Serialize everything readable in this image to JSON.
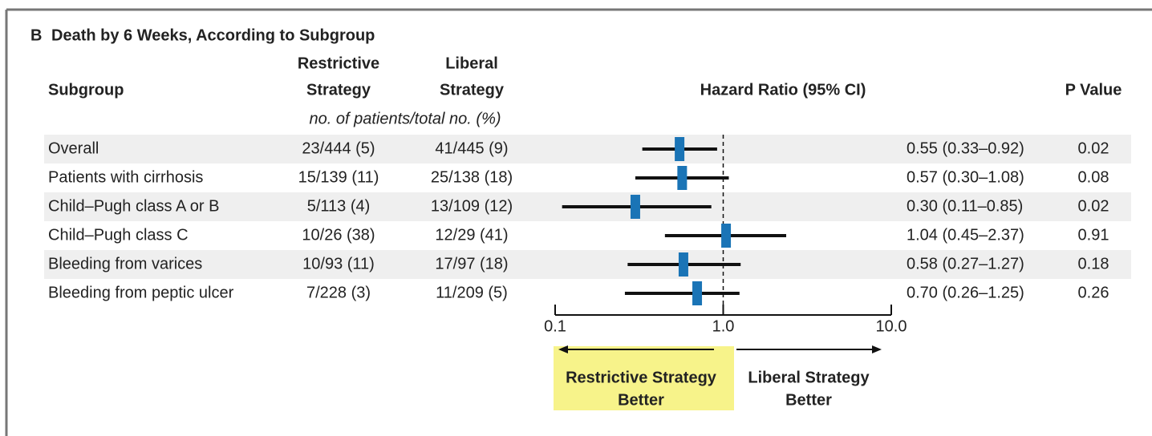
{
  "chart_data": {
    "type": "forest",
    "panel_label": "B",
    "title": "Death by 6 Weeks, According to Subgroup",
    "headers": {
      "subgroup": "Subgroup",
      "restrictive": [
        "Restrictive",
        "Strategy"
      ],
      "liberal": [
        "Liberal",
        "Strategy"
      ],
      "hazard": "Hazard Ratio (95% CI)",
      "p_value": "P Value",
      "counts_note": "no. of patients/total no. (%)"
    },
    "categories": [
      "Overall",
      "Patients with cirrhosis",
      "Child–Pugh class A or B",
      "Child–Pugh class C",
      "Bleeding from varices",
      "Bleeding from peptic ulcer"
    ],
    "restrictive": [
      "23/444 (5)",
      "15/139 (11)",
      "5/113 (4)",
      "10/26 (38)",
      "10/93 (11)",
      "7/228 (3)"
    ],
    "liberal": [
      "41/445 (9)",
      "25/138 (18)",
      "13/109 (12)",
      "12/29 (41)",
      "17/97 (18)",
      "11/209 (5)"
    ],
    "values": [
      0.55,
      0.57,
      0.3,
      1.04,
      0.58,
      0.7
    ],
    "lower": [
      0.33,
      0.3,
      0.11,
      0.45,
      0.27,
      0.26
    ],
    "upper": [
      0.92,
      1.08,
      0.85,
      2.37,
      1.27,
      1.25
    ],
    "value_labels": [
      "0.55 (0.33–0.92)",
      "0.57 (0.30–1.08)",
      "0.30 (0.11–0.85)",
      "1.04 (0.45–2.37)",
      "0.58 (0.27–1.27)",
      "0.70 (0.26–1.25)"
    ],
    "p_values": [
      0.02,
      0.08,
      0.02,
      0.91,
      0.18,
      0.26
    ],
    "color": "#1a74b6",
    "xlim": [
      0.1,
      10
    ],
    "xticks": [
      0.1,
      {
        "value": 1,
        "label": "1.0"
      },
      {
        "value": 10,
        "label": "10.0"
      }
    ],
    "log_x": true,
    "reference_line": 1,
    "left_label": [
      "Restrictive Strategy",
      "Better"
    ],
    "right_label": [
      "Liberal Strategy",
      "Better"
    ]
  }
}
